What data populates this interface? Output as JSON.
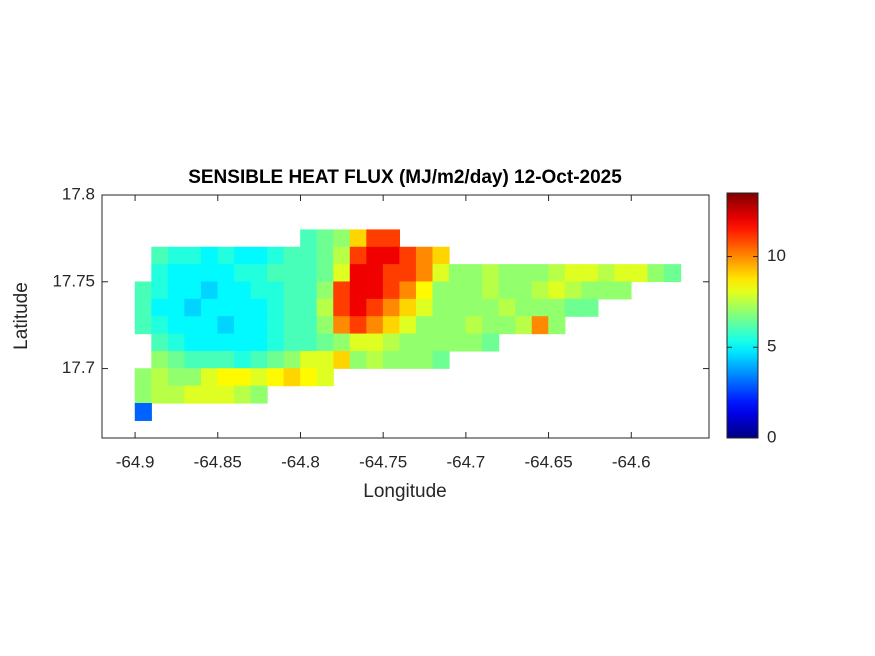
{
  "chart_data": {
    "type": "heatmap",
    "title": "SENSIBLE HEAT FLUX (MJ/m2/day) 12-Oct-2025",
    "x_label": "Longitude",
    "y_label": "Latitude",
    "xlim": [
      -64.92,
      -64.553
    ],
    "ylim": [
      17.66,
      17.8
    ],
    "xticks": [
      -64.9,
      -64.85,
      -64.8,
      -64.75,
      -64.7,
      -64.65,
      -64.6
    ],
    "yticks": [
      17.7,
      17.75,
      17.8
    ],
    "colormap": "jet",
    "clim": [
      0,
      13.5
    ],
    "cticks": [
      0,
      5,
      10
    ],
    "x": [
      -64.895,
      -64.885,
      -64.875,
      -64.865,
      -64.855,
      -64.845,
      -64.835,
      -64.825,
      -64.815,
      -64.805,
      -64.795,
      -64.785,
      -64.775,
      -64.765,
      -64.755,
      -64.745,
      -64.735,
      -64.725,
      -64.715,
      -64.705,
      -64.695,
      -64.685,
      -64.675,
      -64.665,
      -64.655,
      -64.645,
      -64.635,
      -64.625,
      -64.615,
      -64.605,
      -64.595,
      -64.585,
      -64.575,
      -64.565
    ],
    "y": [
      17.775,
      17.765,
      17.755,
      17.745,
      17.735,
      17.725,
      17.715,
      17.705,
      17.695,
      17.685,
      17.675
    ],
    "z": [
      [
        null,
        null,
        null,
        null,
        null,
        null,
        null,
        null,
        null,
        null,
        6,
        6.5,
        7,
        9,
        11,
        11,
        null,
        null,
        null,
        null,
        null,
        null,
        null,
        null,
        null,
        null,
        null,
        null,
        null,
        null,
        null,
        null,
        null,
        null
      ],
      [
        null,
        6,
        5.5,
        5.5,
        5,
        5.5,
        5,
        5,
        5.5,
        6,
        6,
        6.5,
        7.5,
        11,
        12,
        12,
        11,
        10,
        9,
        null,
        null,
        null,
        null,
        null,
        null,
        null,
        null,
        null,
        null,
        null,
        null,
        null,
        null,
        null
      ],
      [
        null,
        5.5,
        5,
        5,
        5,
        5,
        5.5,
        5.5,
        6,
        6,
        6,
        6.5,
        8,
        12,
        12,
        11,
        11,
        10,
        8,
        7,
        7,
        7.5,
        7,
        7,
        7,
        7.5,
        8,
        8,
        7.5,
        8,
        8,
        7,
        6.5,
        null
      ],
      [
        6,
        5.5,
        5,
        5,
        4.5,
        5,
        5,
        5.5,
        5.5,
        6,
        6,
        7,
        11,
        12,
        12,
        11,
        10,
        8.5,
        7,
        7,
        7,
        7.5,
        7,
        7,
        7.5,
        8,
        7.5,
        7,
        7,
        7,
        null,
        null,
        null,
        null
      ],
      [
        6,
        5,
        5,
        4.5,
        5,
        5,
        5,
        5,
        5.5,
        6,
        6,
        7.5,
        11,
        12,
        11,
        10,
        9,
        8,
        7,
        7,
        7,
        7,
        7.5,
        7,
        7,
        7,
        6.5,
        6.5,
        null,
        null,
        null,
        null,
        null,
        null
      ],
      [
        6,
        5.5,
        5,
        5,
        5,
        4.5,
        5,
        5,
        5.5,
        6,
        6,
        7,
        10,
        11,
        10,
        9,
        8,
        7,
        7,
        7,
        7.5,
        7,
        7,
        7.5,
        10,
        7,
        null,
        null,
        null,
        null,
        null,
        null,
        null,
        null
      ],
      [
        null,
        6,
        5.5,
        5,
        5,
        5,
        5,
        5,
        5.5,
        6,
        6,
        6.5,
        7,
        8,
        8,
        7.5,
        7,
        7,
        7,
        7,
        7,
        6.5,
        null,
        null,
        null,
        null,
        null,
        null,
        null,
        null,
        null,
        null,
        null,
        null
      ],
      [
        null,
        7,
        6.5,
        6,
        6,
        6,
        5.5,
        6,
        6.5,
        7,
        8,
        8,
        9,
        7,
        7.5,
        7,
        7,
        7,
        6.5,
        null,
        null,
        null,
        null,
        null,
        null,
        null,
        null,
        null,
        null,
        null,
        null,
        null,
        null,
        null
      ],
      [
        7,
        7.5,
        7,
        7,
        8,
        8.5,
        8.5,
        8,
        8.5,
        9,
        8.5,
        8,
        null,
        null,
        null,
        null,
        null,
        null,
        null,
        null,
        null,
        null,
        null,
        null,
        null,
        null,
        null,
        null,
        null,
        null,
        null,
        null,
        null,
        null
      ],
      [
        7,
        7.5,
        7.5,
        8,
        8,
        8,
        7.5,
        7,
        null,
        null,
        null,
        null,
        null,
        null,
        null,
        null,
        null,
        null,
        null,
        null,
        null,
        null,
        null,
        null,
        null,
        null,
        null,
        null,
        null,
        null,
        null,
        null,
        null,
        null
      ],
      [
        3,
        null,
        null,
        null,
        null,
        null,
        null,
        null,
        null,
        null,
        null,
        null,
        null,
        null,
        null,
        null,
        null,
        null,
        null,
        null,
        null,
        null,
        null,
        null,
        null,
        null,
        null,
        null,
        null,
        null,
        null,
        null,
        null,
        null
      ]
    ]
  }
}
